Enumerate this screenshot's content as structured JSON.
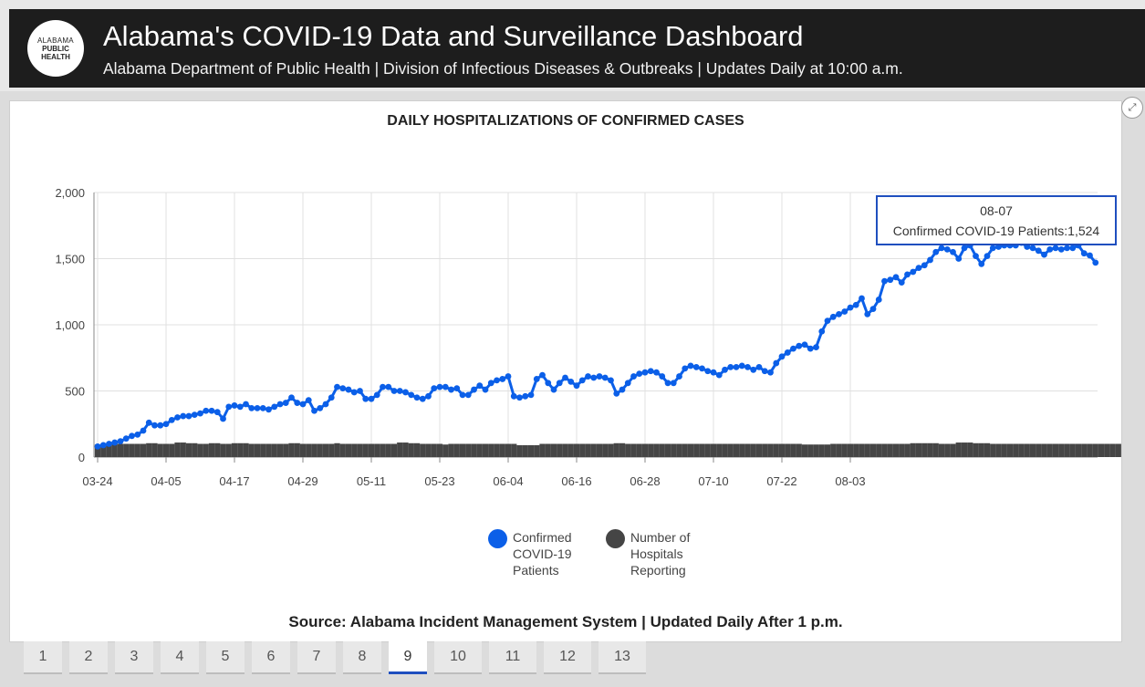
{
  "header": {
    "logo_lines": [
      "ALABAMA",
      "PUBLIC",
      "HEALTH"
    ],
    "title": "Alabama's COVID-19 Data and Surveillance Dashboard",
    "subtitle": "Alabama Department of Public Health | Division of Infectious Diseases & Outbreaks | Updates Daily at 10:00 a.m."
  },
  "panel": {
    "expand_icon": "expand-icon",
    "source": "Source: Alabama Incident Management System | Updated Daily After 1 p.m."
  },
  "tooltip": {
    "date": "08-07",
    "text": "Confirmed COVID-19 Patients:1,524"
  },
  "tabs": [
    "1",
    "2",
    "3",
    "4",
    "5",
    "6",
    "7",
    "8",
    "9",
    "10",
    "11",
    "12",
    "13"
  ],
  "active_tab": "9",
  "colors": {
    "series1": "#0b5fe8",
    "series2": "#454545",
    "accent": "#1f4fbf"
  },
  "chart_data": {
    "type": "line",
    "title": "DAILY HOSPITALIZATIONS OF CONFIRMED CASES",
    "xlabel": "",
    "ylabel": "",
    "ylim": [
      0,
      2000
    ],
    "y_ticks": [
      "0",
      "500",
      "1,000",
      "1,500",
      "2,000"
    ],
    "x_ticks": [
      "03-24",
      "04-05",
      "04-17",
      "04-29",
      "05-11",
      "05-23",
      "06-04",
      "06-16",
      "06-28",
      "07-10",
      "07-22",
      "08-03"
    ],
    "grid": true,
    "legend_position": "bottom",
    "start_date": "03-24",
    "series": [
      {
        "name": "Confirmed COVID-19 Patients",
        "type": "line",
        "color": "#0b5fe8",
        "values": [
          80,
          90,
          100,
          110,
          120,
          140,
          160,
          170,
          200,
          260,
          240,
          240,
          250,
          280,
          300,
          310,
          310,
          320,
          330,
          350,
          350,
          340,
          290,
          380,
          390,
          380,
          400,
          370,
          370,
          370,
          360,
          380,
          400,
          410,
          450,
          410,
          400,
          430,
          350,
          370,
          400,
          450,
          530,
          520,
          510,
          490,
          500,
          440,
          440,
          470,
          530,
          530,
          500,
          500,
          490,
          470,
          450,
          440,
          460,
          520,
          530,
          530,
          510,
          520,
          470,
          470,
          510,
          540,
          510,
          560,
          580,
          590,
          610,
          460,
          450,
          460,
          470,
          590,
          620,
          560,
          510,
          560,
          600,
          570,
          540,
          580,
          610,
          600,
          610,
          600,
          580,
          480,
          510,
          560,
          610,
          630,
          640,
          650,
          640,
          610,
          560,
          560,
          610,
          670,
          690,
          680,
          670,
          650,
          640,
          620,
          660,
          680,
          680,
          690,
          680,
          660,
          680,
          650,
          640,
          710,
          760,
          790,
          820,
          840,
          850,
          820,
          830,
          950,
          1030,
          1060,
          1080,
          1100,
          1130,
          1150,
          1200,
          1080,
          1120,
          1190,
          1330,
          1340,
          1360,
          1320,
          1380,
          1400,
          1430,
          1450,
          1490,
          1550,
          1580,
          1570,
          1550,
          1500,
          1580,
          1600,
          1520,
          1460,
          1520,
          1580,
          1590,
          1600,
          1600,
          1600,
          1620,
          1590,
          1580,
          1560,
          1530,
          1570,
          1580,
          1570,
          1580,
          1580,
          1600,
          1540,
          1524,
          1470
        ]
      },
      {
        "name": "Number of Hospitals Reporting",
        "type": "bar",
        "color": "#454545",
        "values": [
          95,
          100,
          100,
          100,
          100,
          100,
          100,
          100,
          100,
          105,
          105,
          100,
          100,
          100,
          110,
          110,
          105,
          105,
          100,
          100,
          105,
          105,
          100,
          100,
          105,
          105,
          105,
          100,
          100,
          100,
          100,
          100,
          100,
          100,
          105,
          105,
          100,
          100,
          100,
          100,
          100,
          100,
          105,
          100,
          100,
          100,
          100,
          100,
          100,
          100,
          100,
          100,
          100,
          110,
          110,
          105,
          105,
          100,
          100,
          100,
          100,
          95,
          100,
          100,
          100,
          100,
          100,
          100,
          100,
          100,
          100,
          100,
          100,
          100,
          90,
          90,
          90,
          90,
          100,
          100,
          100,
          100,
          100,
          100,
          100,
          100,
          100,
          100,
          100,
          100,
          100,
          105,
          105,
          100,
          100,
          100,
          100,
          100,
          100,
          100,
          100,
          100,
          100,
          100,
          100,
          100,
          100,
          100,
          100,
          100,
          100,
          100,
          100,
          100,
          100,
          100,
          100,
          100,
          100,
          100,
          100,
          100,
          100,
          100,
          95,
          95,
          95,
          95,
          95,
          100,
          100,
          100,
          100,
          100,
          100,
          100,
          100,
          100,
          100,
          100,
          100,
          100,
          100,
          105,
          105,
          105,
          105,
          105,
          100,
          100,
          100,
          110,
          110,
          110,
          105,
          105,
          105,
          100,
          100,
          100,
          100,
          100,
          100,
          100,
          100,
          100,
          100,
          100,
          100,
          100,
          100,
          100,
          100,
          100,
          100,
          100,
          100,
          100,
          100,
          100,
          100,
          100,
          100,
          100,
          100,
          100,
          100,
          100
        ]
      }
    ]
  }
}
